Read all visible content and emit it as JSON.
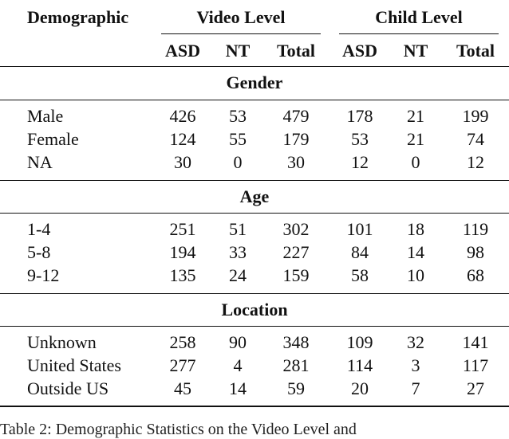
{
  "table": {
    "header": {
      "demographic": "Demographic",
      "video_level": "Video Level",
      "child_level": "Child Level",
      "subcols": [
        "ASD",
        "NT",
        "Total",
        "ASD",
        "NT",
        "Total"
      ]
    },
    "sections": [
      {
        "title": "Gender",
        "rows": [
          {
            "label": "Male",
            "values": [
              "426",
              "53",
              "479",
              "178",
              "21",
              "199"
            ]
          },
          {
            "label": "Female",
            "values": [
              "124",
              "55",
              "179",
              "53",
              "21",
              "74"
            ]
          },
          {
            "label": "NA",
            "values": [
              "30",
              "0",
              "30",
              "12",
              "0",
              "12"
            ]
          }
        ]
      },
      {
        "title": "Age",
        "rows": [
          {
            "label": "1-4",
            "values": [
              "251",
              "51",
              "302",
              "101",
              "18",
              "119"
            ]
          },
          {
            "label": "5-8",
            "values": [
              "194",
              "33",
              "227",
              "84",
              "14",
              "98"
            ]
          },
          {
            "label": "9-12",
            "values": [
              "135",
              "24",
              "159",
              "58",
              "10",
              "68"
            ]
          }
        ]
      },
      {
        "title": "Location",
        "rows": [
          {
            "label": "Unknown",
            "values": [
              "258",
              "90",
              "348",
              "109",
              "32",
              "141"
            ]
          },
          {
            "label": "United States",
            "values": [
              "277",
              "4",
              "281",
              "114",
              "3",
              "117"
            ]
          },
          {
            "label": "Outside US",
            "values": [
              "45",
              "14",
              "59",
              "20",
              "7",
              "27"
            ]
          }
        ]
      }
    ]
  },
  "caption": "Table 2: Demographic Statistics on the Video Level and"
}
